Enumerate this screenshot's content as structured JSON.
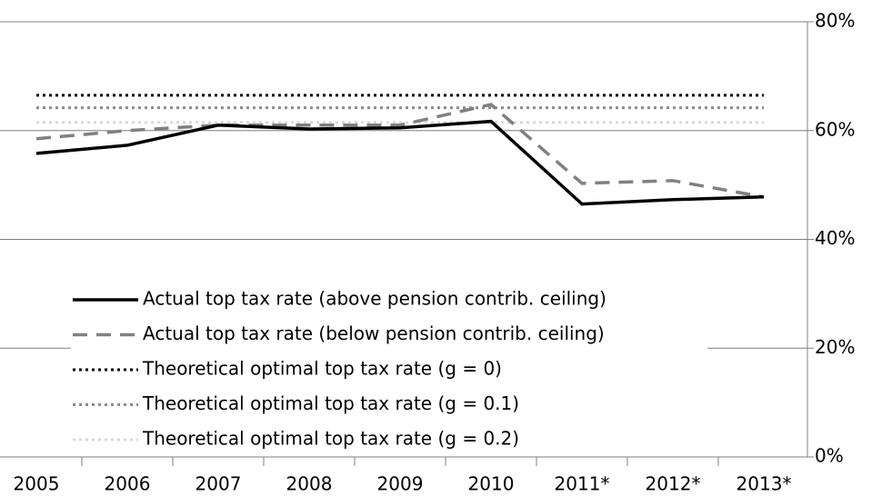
{
  "chart_data": {
    "type": "line",
    "categories": [
      "2005",
      "2006",
      "2007",
      "2008",
      "2009",
      "2010",
      "2011*",
      "2012*",
      "2013*"
    ],
    "series": [
      {
        "name": "Actual top tax rate (above pension contrib. ceiling)",
        "color": "#000000",
        "dash": "solid",
        "values": [
          55.8,
          57.3,
          61.0,
          60.3,
          60.5,
          61.7,
          46.5,
          47.3,
          47.8
        ]
      },
      {
        "name": "Actual top tax rate (below pension contrib. ceiling)",
        "color": "#808080",
        "dash": "dashed",
        "values": [
          58.5,
          60.0,
          61.0,
          61.0,
          61.0,
          64.8,
          50.3,
          50.8,
          47.8
        ]
      },
      {
        "name": "Theoretical optimal top tax rate (g = 0)",
        "color": "#000000",
        "dash": "dotted",
        "values": [
          66.5,
          66.5,
          66.5,
          66.5,
          66.5,
          66.5,
          66.5,
          66.5,
          66.5
        ]
      },
      {
        "name": "Theoretical optimal top tax rate (g = 0.1)",
        "color": "#8c8c8c",
        "dash": "dotted",
        "values": [
          64.2,
          64.2,
          64.2,
          64.2,
          64.2,
          64.2,
          64.2,
          64.2,
          64.2
        ]
      },
      {
        "name": "Theoretical optimal top tax rate (g = 0.2)",
        "color": "#d9d9d9",
        "dash": "dotted",
        "values": [
          61.5,
          61.5,
          61.5,
          61.5,
          61.5,
          61.5,
          61.5,
          61.5,
          61.5
        ]
      }
    ],
    "ylim": [
      0,
      80
    ],
    "yticks": [
      {
        "value": 0,
        "label": "0%"
      },
      {
        "value": 20,
        "label": "20%"
      },
      {
        "value": 40,
        "label": "40%"
      },
      {
        "value": 60,
        "label": "60%"
      },
      {
        "value": 80,
        "label": "80%"
      }
    ],
    "y_axis_side": "right",
    "grid": true,
    "legend": "lower left"
  }
}
